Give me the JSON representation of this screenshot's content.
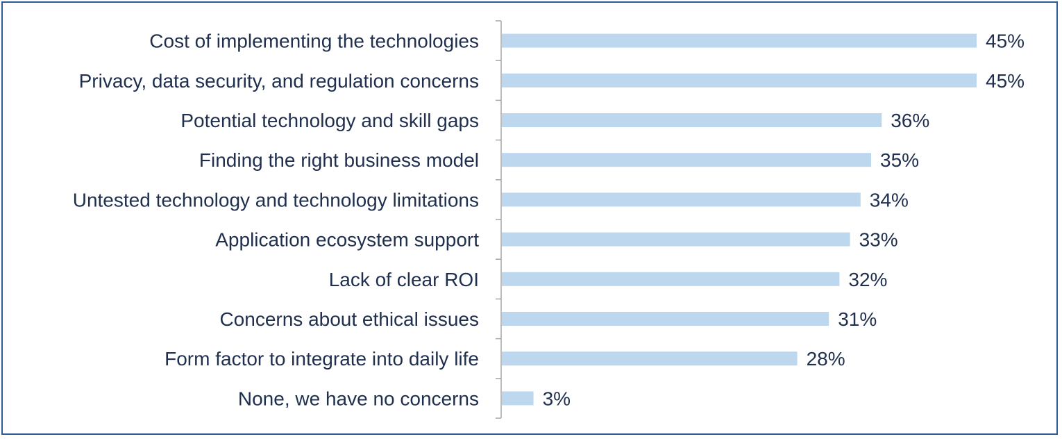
{
  "chart_data": {
    "type": "bar",
    "orientation": "horizontal",
    "categories": [
      "Cost of implementing the technologies",
      "Privacy, data security, and regulation concerns",
      "Potential technology and skill gaps",
      "Finding the right business model",
      "Untested technology and technology limitations",
      "Application ecosystem support",
      "Lack of clear ROI",
      "Concerns about ethical issues",
      "Form factor to integrate into daily life",
      "None, we have no concerns"
    ],
    "values": [
      45,
      45,
      36,
      35,
      34,
      33,
      32,
      31,
      28,
      3
    ],
    "value_labels": [
      "45%",
      "45%",
      "36%",
      "35%",
      "34%",
      "33%",
      "32%",
      "31%",
      "28%",
      "3%"
    ],
    "unit": "%",
    "xlim": [
      0,
      50
    ],
    "grid": false,
    "legend": "none",
    "title": "",
    "xlabel": "",
    "ylabel": "",
    "bar_color": "#bdd7ee",
    "text_color": "#1f2f4d",
    "axis_color": "#a6a6a6",
    "border_color": "#2f5b94"
  }
}
